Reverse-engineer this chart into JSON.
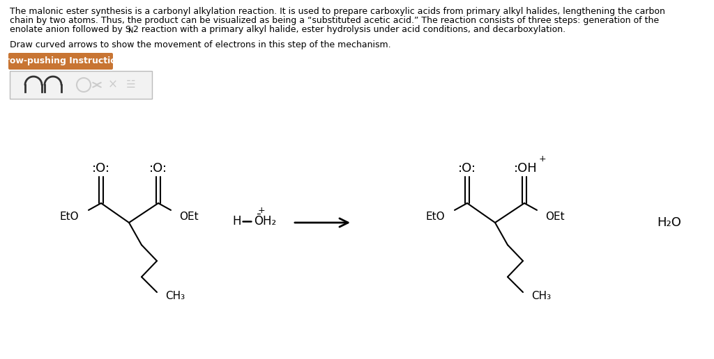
{
  "bg": "#ffffff",
  "para1_lines": [
    "The malonic ester synthesis is a carbonyl alkylation reaction. It is used to prepare carboxylic acids from primary alkyl halides, lengthening the carbon",
    "chain by two atoms. Thus, the product can be visualized as being a “substituted acetic acid.” The reaction consists of three steps: generation of the",
    "enolate anion followed by S"
  ],
  "para1_line3b": "N",
  "para1_line3c": "2 reaction with a primary alkyl halide, ester hydrolysis under acid conditions, and decarboxylation.",
  "para2": "Draw curved arrows to show the movement of electrons in this step of the mechanism.",
  "btn_text": "Arrow-pushing Instructions",
  "btn_color": "#c87533",
  "font_body": 9.0,
  "font_chem": 11.5,
  "lco_dots": ":O:",
  "rco_dots": ":O:",
  "rco_dots2": ":OH",
  "lbl_eto": "EtO",
  "lbl_oet": "OEt",
  "lbl_ch3": "CH₃",
  "lbl_h2o": "H₂O",
  "lbl_hoh2": "H—ŌH₂"
}
